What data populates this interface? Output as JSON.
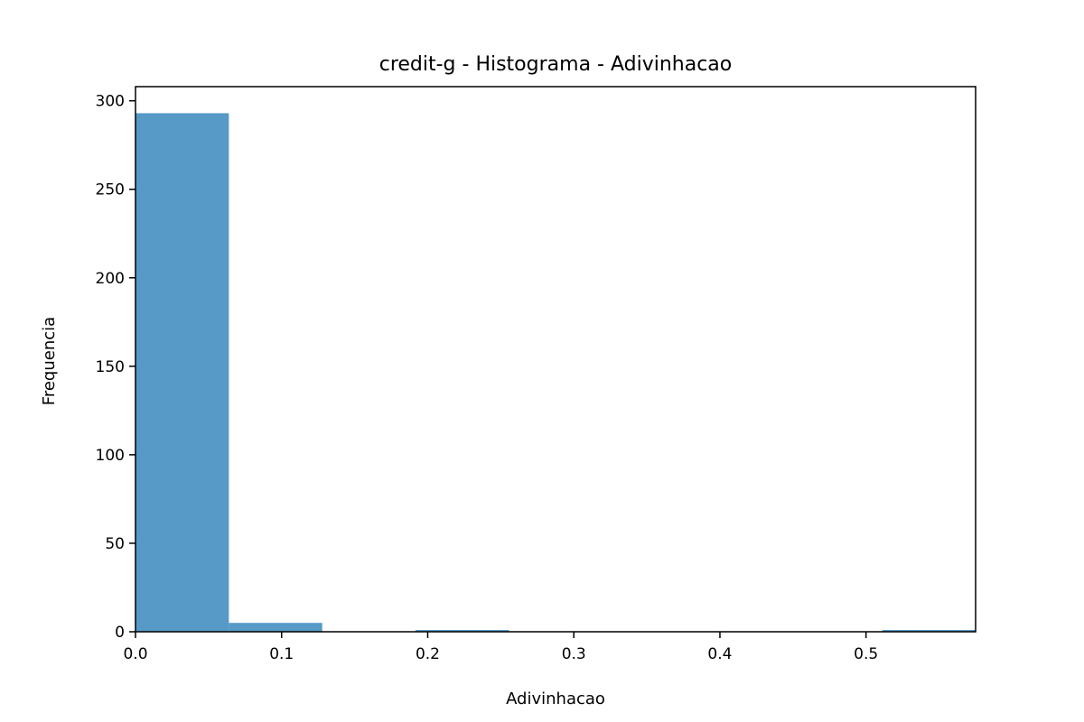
{
  "chart_data": {
    "type": "bar",
    "title": "credit-g - Histograma - Adivinhacao",
    "xlabel": "Adivinhacao",
    "ylabel": "Frequencia",
    "xlim": [
      0.0,
      0.575
    ],
    "ylim": [
      0,
      308
    ],
    "x_ticks": [
      0.0,
      0.1,
      0.2,
      0.3,
      0.4,
      0.5
    ],
    "x_tick_labels": [
      "0.0",
      "0.1",
      "0.2",
      "0.3",
      "0.4",
      "0.5"
    ],
    "y_ticks": [
      0,
      50,
      100,
      150,
      200,
      250,
      300
    ],
    "y_tick_labels": [
      "0",
      "50",
      "100",
      "150",
      "200",
      "250",
      "300"
    ],
    "bins": [
      {
        "start": 0.0,
        "end": 0.0639,
        "count": 293
      },
      {
        "start": 0.0639,
        "end": 0.1278,
        "count": 5
      },
      {
        "start": 0.1278,
        "end": 0.1917,
        "count": 0
      },
      {
        "start": 0.1917,
        "end": 0.2556,
        "count": 1
      },
      {
        "start": 0.2556,
        "end": 0.3194,
        "count": 0
      },
      {
        "start": 0.3194,
        "end": 0.3833,
        "count": 0
      },
      {
        "start": 0.3833,
        "end": 0.4472,
        "count": 0
      },
      {
        "start": 0.4472,
        "end": 0.5111,
        "count": 0
      },
      {
        "start": 0.5111,
        "end": 0.575,
        "count": 1
      }
    ],
    "bar_color": "#5799c7",
    "grid": false,
    "legend": "none"
  }
}
